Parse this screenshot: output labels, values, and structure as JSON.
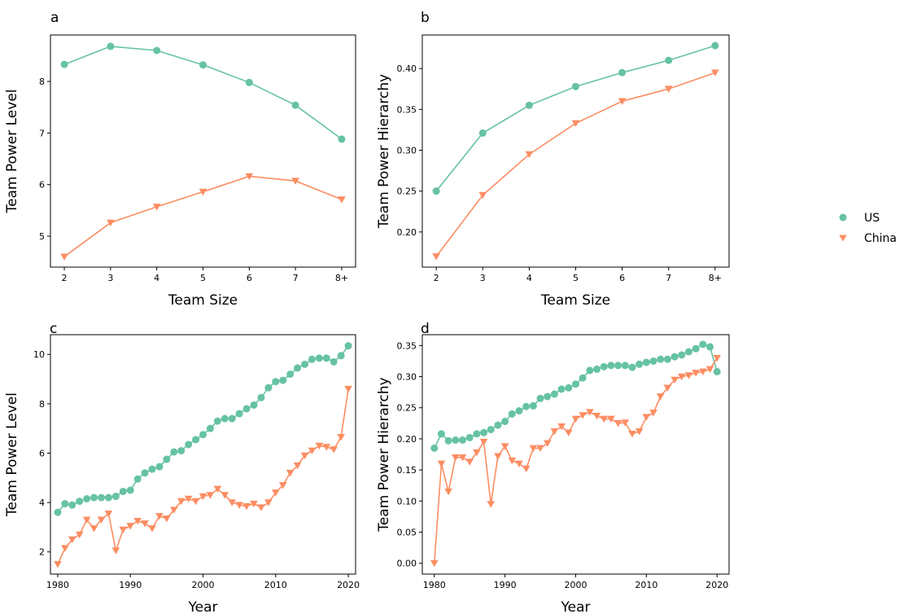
{
  "colors": {
    "US": "#66c2a5",
    "China": "#fc8d62"
  },
  "legend": [
    {
      "name": "US",
      "marker": "circle"
    },
    {
      "name": "China",
      "marker": "triangle-down"
    }
  ],
  "chart_data": [
    {
      "type": "line",
      "panel": "a",
      "xlabel": "Team Size",
      "ylabel": "Team Power Level",
      "categories": [
        "2",
        "3",
        "4",
        "5",
        "6",
        "7",
        "8+"
      ],
      "ylim": [
        4.4,
        8.9
      ],
      "yticks": [
        5,
        6,
        7,
        8
      ],
      "series": [
        {
          "name": "US",
          "values": [
            8.33,
            8.68,
            8.6,
            8.32,
            7.98,
            7.54,
            6.88
          ]
        },
        {
          "name": "China",
          "values": [
            4.6,
            5.26,
            5.57,
            5.86,
            6.16,
            6.07,
            5.71
          ]
        }
      ]
    },
    {
      "type": "line",
      "panel": "b",
      "xlabel": "Team Size",
      "ylabel": "Team Power Hierarchy",
      "categories": [
        "2",
        "3",
        "4",
        "5",
        "6",
        "7",
        "8+"
      ],
      "ylim": [
        0.157,
        0.441
      ],
      "yticks": [
        "0.20",
        "0.25",
        "0.30",
        "0.35",
        "0.40"
      ],
      "series": [
        {
          "name": "US",
          "values": [
            0.25,
            0.321,
            0.355,
            0.378,
            0.395,
            0.41,
            0.428
          ]
        },
        {
          "name": "China",
          "values": [
            0.17,
            0.245,
            0.295,
            0.333,
            0.36,
            0.375,
            0.395
          ]
        }
      ]
    },
    {
      "type": "line",
      "panel": "c",
      "xlabel": "Year",
      "ylabel": "Team Power Level",
      "x": [
        1980,
        1981,
        1982,
        1983,
        1984,
        1985,
        1986,
        1987,
        1988,
        1989,
        1990,
        1991,
        1992,
        1993,
        1994,
        1995,
        1996,
        1997,
        1998,
        1999,
        2000,
        2001,
        2002,
        2003,
        2004,
        2005,
        2006,
        2007,
        2008,
        2009,
        2010,
        2011,
        2012,
        2013,
        2014,
        2015,
        2016,
        2017,
        2018,
        2019,
        2020
      ],
      "xlim": [
        1979,
        2021
      ],
      "xticks": [
        1980,
        1990,
        2000,
        2010,
        2020
      ],
      "ylim": [
        1.1,
        10.8
      ],
      "yticks": [
        2,
        4,
        6,
        8,
        10
      ],
      "series": [
        {
          "name": "US",
          "values": [
            3.6,
            3.95,
            3.9,
            4.05,
            4.15,
            4.2,
            4.2,
            4.2,
            4.25,
            4.45,
            4.5,
            4.95,
            5.2,
            5.35,
            5.45,
            5.75,
            6.05,
            6.1,
            6.35,
            6.55,
            6.75,
            7.0,
            7.3,
            7.4,
            7.4,
            7.6,
            7.8,
            7.95,
            8.25,
            8.65,
            8.9,
            8.95,
            9.2,
            9.45,
            9.6,
            9.8,
            9.85,
            9.85,
            9.7,
            9.95,
            10.35
          ]
        },
        {
          "name": "China",
          "values": [
            1.5,
            2.15,
            2.5,
            2.7,
            3.3,
            2.95,
            3.3,
            3.55,
            2.05,
            2.9,
            3.05,
            3.25,
            3.15,
            2.95,
            3.45,
            3.35,
            3.7,
            4.05,
            4.15,
            4.05,
            4.25,
            4.3,
            4.55,
            4.3,
            4.0,
            3.9,
            3.85,
            3.95,
            3.8,
            4.0,
            4.4,
            4.7,
            5.2,
            5.5,
            5.9,
            6.1,
            6.3,
            6.25,
            6.15,
            6.65,
            8.6
          ]
        }
      ]
    },
    {
      "type": "line",
      "panel": "d",
      "xlabel": "Year",
      "ylabel": "Team Power Hierarchy",
      "x": [
        1980,
        1981,
        1982,
        1983,
        1984,
        1985,
        1986,
        1987,
        1988,
        1989,
        1990,
        1991,
        1992,
        1993,
        1994,
        1995,
        1996,
        1997,
        1998,
        1999,
        2000,
        2001,
        2002,
        2003,
        2004,
        2005,
        2006,
        2007,
        2008,
        2009,
        2010,
        2011,
        2012,
        2013,
        2014,
        2015,
        2016,
        2017,
        2018,
        2019,
        2020
      ],
      "xlim": [
        1978.3,
        2021.7
      ],
      "xticks": [
        1980,
        1990,
        2000,
        2010,
        2020
      ],
      "ylim": [
        -0.0175,
        0.3675
      ],
      "yticks": [
        "0.00",
        "0.05",
        "0.10",
        "0.15",
        "0.20",
        "0.25",
        "0.30",
        "0.35"
      ],
      "series": [
        {
          "name": "US",
          "values": [
            0.185,
            0.208,
            0.197,
            0.198,
            0.198,
            0.202,
            0.208,
            0.21,
            0.215,
            0.222,
            0.228,
            0.24,
            0.245,
            0.252,
            0.253,
            0.265,
            0.268,
            0.272,
            0.28,
            0.282,
            0.288,
            0.298,
            0.31,
            0.312,
            0.316,
            0.318,
            0.318,
            0.318,
            0.315,
            0.32,
            0.323,
            0.325,
            0.328,
            0.328,
            0.332,
            0.335,
            0.34,
            0.345,
            0.352,
            0.348,
            0.308
          ]
        },
        {
          "name": "China",
          "values": [
            0.0,
            0.16,
            0.115,
            0.17,
            0.17,
            0.163,
            0.178,
            0.195,
            0.095,
            0.172,
            0.188,
            0.165,
            0.16,
            0.152,
            0.185,
            0.185,
            0.193,
            0.212,
            0.22,
            0.21,
            0.232,
            0.238,
            0.243,
            0.237,
            0.232,
            0.232,
            0.225,
            0.226,
            0.208,
            0.212,
            0.235,
            0.242,
            0.268,
            0.282,
            0.295,
            0.3,
            0.302,
            0.306,
            0.308,
            0.312,
            0.33
          ]
        }
      ]
    }
  ]
}
